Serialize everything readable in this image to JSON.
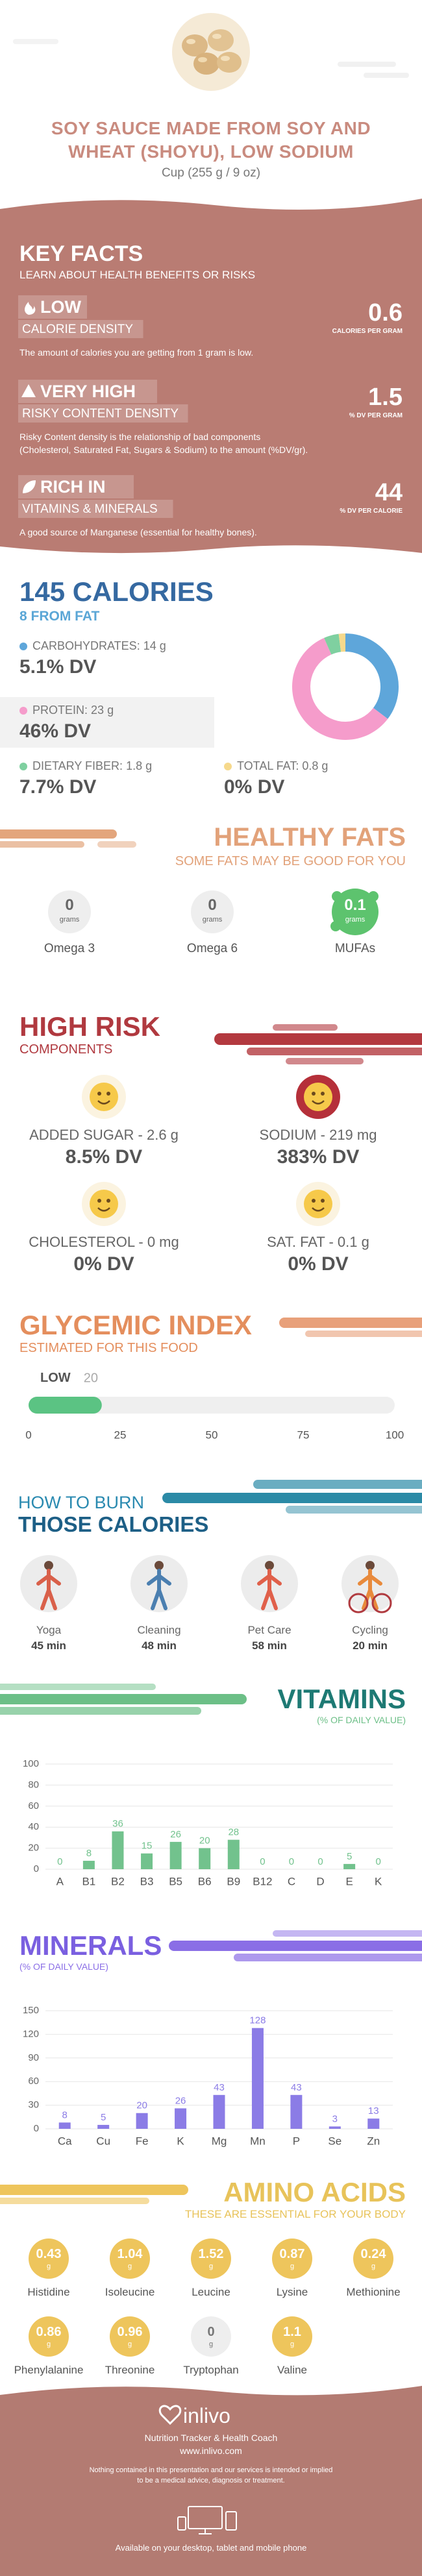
{
  "header": {
    "title_lines": [
      "SOY SAUCE MADE FROM SOY AND",
      "WHEAT (SHOYU), LOW SODIUM"
    ],
    "serving": "Cup (255 g / 9 oz)"
  },
  "key_facts": {
    "title": "KEY FACTS",
    "subtitle": "LEARN ABOUT HEALTH BENEFITS OR RISKS",
    "facts": [
      {
        "level": "LOW",
        "label": "CALORIE DENSITY",
        "value": 0.6,
        "unit": "CALORIES PER GRAM",
        "description": [
          "The amount of calories you are getting from 1 gram is low."
        ]
      },
      {
        "level": "VERY HIGH",
        "label": "RISKY CONTENT DENSITY",
        "value": 1.5,
        "unit": "% DV PER GRAM",
        "description": [
          "Risky Content density is the relationship of bad components",
          "(Cholesterol, Saturated Fat, Sugars & Sodium) to the amount (%DV/gr)."
        ]
      },
      {
        "level": "RICH IN",
        "label": "VITAMINS & MINERALS",
        "value": 44,
        "unit": "% DV PER CALORIE",
        "description": [
          "A good source of Manganese (essential for healthy bones)."
        ]
      }
    ]
  },
  "calories": {
    "title": "145 CALORIES",
    "from_fat": "8 FROM FAT",
    "nutrients": [
      {
        "name": "CARBOHYDRATES:",
        "amount": 14,
        "unit": "g",
        "dv": "5.1% DV",
        "color": "#5ea6da"
      },
      {
        "name": "PROTEIN:",
        "amount": 23,
        "unit": "g",
        "dv": "46% DV",
        "color": "#f59ccb"
      },
      {
        "name": "DIETARY FIBER:",
        "amount": 1.8,
        "unit": "g",
        "dv": "7.7% DV",
        "color": "#7fd0a0"
      },
      {
        "name": "TOTAL FAT:",
        "amount": 0.8,
        "unit": "g",
        "dv": "0% DV",
        "color": "#f6d98c"
      }
    ]
  },
  "healthy_fats": {
    "title": "HEALTHY FATS",
    "subtitle": "SOME FATS MAY BE GOOD FOR YOU",
    "unit": "grams",
    "items": [
      {
        "name": "Omega 3",
        "value": 0
      },
      {
        "name": "Omega 6",
        "value": 0
      },
      {
        "name": "MUFAs",
        "value": 0.1
      }
    ]
  },
  "high_risk": {
    "title": "HIGH RISK",
    "subtitle": "COMPONENTS",
    "items": [
      {
        "label": "ADDED SUGAR - 2.6 g",
        "dv": "8.5% DV"
      },
      {
        "label": "SODIUM - 219 mg",
        "dv": "383% DV"
      },
      {
        "label": "CHOLESTEROL - 0 mg",
        "dv": "0% DV"
      },
      {
        "label": "SAT. FAT - 0.1 g",
        "dv": "0% DV"
      }
    ]
  },
  "glycemic_index": {
    "title": "GLYCEMIC INDEX",
    "subtitle": "ESTIMATED FOR THIS FOOD",
    "level": "LOW",
    "value": 20,
    "xlim": [
      0,
      100
    ],
    "xticks": [
      0,
      25,
      50,
      75,
      100
    ]
  },
  "burn": {
    "title_top": "HOW TO BURN",
    "title": "THOSE CALORIES",
    "activities": [
      {
        "name": "Yoga",
        "time": "45 min"
      },
      {
        "name": "Cleaning",
        "time": "48 min"
      },
      {
        "name": "Pet Care",
        "time": "58 min"
      },
      {
        "name": "Cycling",
        "time": "20 min"
      }
    ]
  },
  "chart_data": [
    {
      "type": "bar",
      "title": "VITAMINS",
      "subtitle": "(% OF DAILY VALUE)",
      "categories": [
        "A",
        "B1",
        "B2",
        "B3",
        "B5",
        "B6",
        "B9",
        "B12",
        "C",
        "D",
        "E",
        "K"
      ],
      "values": [
        0,
        8,
        36,
        15,
        26,
        20,
        28,
        0,
        0,
        0,
        5,
        0
      ],
      "color": "#72c28d",
      "ylim": [
        0,
        100
      ],
      "yticks": [
        0,
        20,
        40,
        60,
        80,
        100
      ],
      "grid": true
    },
    {
      "type": "bar",
      "title": "MINERALS",
      "subtitle": "(% OF DAILY VALUE)",
      "categories": [
        "Ca",
        "Cu",
        "Fe",
        "K",
        "Mg",
        "Mn",
        "P",
        "Se",
        "Zn"
      ],
      "values": [
        8,
        5,
        20,
        26,
        43,
        128,
        43,
        3,
        13
      ],
      "color": "#8b7ce6",
      "ylim": [
        0,
        150
      ],
      "yticks": [
        0,
        30,
        60,
        90,
        120,
        150
      ],
      "grid": true
    }
  ],
  "amino_acids": {
    "title": "AMINO ACIDS",
    "subtitle": "THESE ARE ESSENTIAL FOR YOUR BODY",
    "unit": "g",
    "items": [
      {
        "name": "Histidine",
        "value": 0.43
      },
      {
        "name": "Isoleucine",
        "value": 1.04
      },
      {
        "name": "Leucine",
        "value": 1.52
      },
      {
        "name": "Lysine",
        "value": 0.87
      },
      {
        "name": "Methionine",
        "value": 0.24
      },
      {
        "name": "Phenylalanine",
        "value": 0.86
      },
      {
        "name": "Threonine",
        "value": 0.96
      },
      {
        "name": "Tryptophan",
        "value": 0
      },
      {
        "name": "Valine",
        "value": 1.1
      }
    ]
  },
  "footer": {
    "brand": "inlivo",
    "tagline": "Nutrition Tracker & Health Coach",
    "url": "www.inlivo.com",
    "disclaimer": [
      "Nothing contained in this presentation and our services is intended or implied",
      "to be a medical advice, diagnosis or treatment."
    ],
    "availability": "Available on your desktop, tablet and mobile phone"
  }
}
